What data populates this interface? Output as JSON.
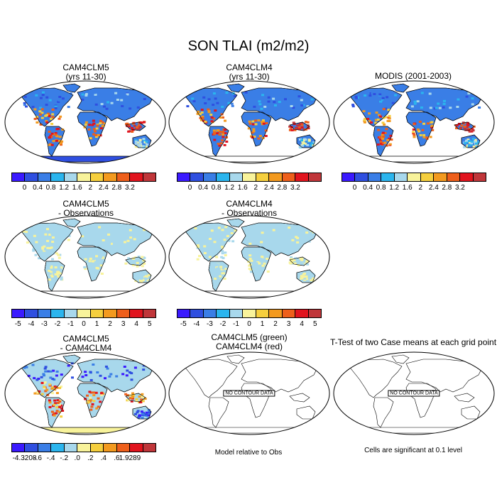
{
  "title": "SON TLAI (m2/m2)",
  "palette": [
    "#3b1aff",
    "#2f4fe0",
    "#3a7ee6",
    "#2bb5ee",
    "#a8d8ec",
    "#f8f39b",
    "#f5cf3e",
    "#f39a1f",
    "#ee5f1b",
    "#e1141e",
    "#c0363a"
  ],
  "chart_data": [
    {
      "type": "heatmap",
      "panel": "CAM4CLM5",
      "title": [
        "CAM4CLM5",
        "(yrs 11-30)"
      ],
      "colorbar_ticks": [
        "0",
        "0.4",
        "0.8",
        "1.2",
        "1.6",
        "2",
        "2.4",
        "2.8",
        "3.2"
      ],
      "has_data": true
    },
    {
      "type": "heatmap",
      "panel": "CAM4CLM4",
      "title": [
        "CAM4CLM4",
        "(yrs 11-30)"
      ],
      "colorbar_ticks": [
        "0",
        "0.4",
        "0.8",
        "1.2",
        "1.6",
        "2",
        "2.4",
        "2.8",
        "3.2"
      ],
      "has_data": true
    },
    {
      "type": "heatmap",
      "panel": "MODIS",
      "title": [
        "MODIS (2001-2003)"
      ],
      "colorbar_ticks": [
        "0",
        "0.4",
        "0.8",
        "1.2",
        "1.6",
        "2",
        "2.4",
        "2.8",
        "3.2"
      ],
      "has_data": true
    },
    {
      "type": "heatmap",
      "panel": "CAM4CLM5 - Observations",
      "title": [
        "CAM4CLM5",
        "- Observations"
      ],
      "colorbar_ticks": [
        "-5",
        "-4",
        "-3",
        "-2",
        "-1",
        "0",
        "1",
        "2",
        "3",
        "4",
        "5"
      ],
      "has_data": true
    },
    {
      "type": "heatmap",
      "panel": "CAM4CLM4 - Observations",
      "title": [
        "CAM4CLM4",
        "- Observations"
      ],
      "colorbar_ticks": [
        "-5",
        "-4",
        "-3",
        "-2",
        "-1",
        "0",
        "1",
        "2",
        "3",
        "4",
        "5"
      ],
      "has_data": true
    },
    {
      "type": "heatmap",
      "panel": "CAM4CLM5 - CAM4CLM4",
      "title": [
        "CAM4CLM5",
        "- CAM4CLM4"
      ],
      "colorbar_ticks": [
        "-4.3208",
        "-.6",
        "-.4",
        "-.2",
        ".0",
        ".2",
        ".4",
        ".6",
        "1.9289"
      ],
      "has_data": true
    },
    {
      "type": "heatmap",
      "panel": "CAM4CLM5 (green) vs CAM4CLM4 (red)",
      "title": [
        "CAM4CLM5 (green)",
        "CAM4CLM4 (red)"
      ],
      "annotation": "NO CONTOUR DATA",
      "note": "Model relative to Obs",
      "has_data": false
    },
    {
      "type": "heatmap",
      "panel": "T-Test",
      "title": [
        "T-Test of two Case means at each grid point"
      ],
      "annotation": "NO CONTOUR DATA",
      "note": "Cells are significant at 0.1 level",
      "has_data": false
    }
  ]
}
